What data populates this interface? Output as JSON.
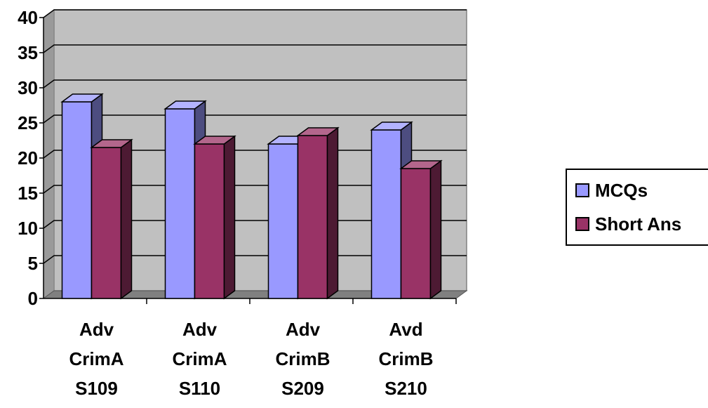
{
  "chart_data": {
    "type": "bar",
    "categories": [
      [
        "Adv",
        "CrimA",
        "S109"
      ],
      [
        "Adv",
        "CrimA",
        "S110"
      ],
      [
        "Adv",
        "CrimB",
        "S209"
      ],
      [
        "Avd",
        "CrimB",
        "S210"
      ]
    ],
    "series": [
      {
        "name": "MCQs",
        "values": [
          28,
          27,
          22,
          24
        ],
        "color": "#9999ff"
      },
      {
        "name": "Short Ans",
        "values": [
          21.5,
          22,
          23.2,
          18.5
        ],
        "color": "#993366"
      }
    ],
    "y_ticks": [
      "0",
      "5",
      "10",
      "15",
      "20",
      "25",
      "30",
      "35",
      "40"
    ],
    "ylim": [
      0,
      40
    ],
    "grid": true,
    "legend_position": "right",
    "plot_background": "#c0c0c0",
    "three_d": true
  },
  "legend": {
    "items": [
      {
        "label": "MCQs",
        "color": "#9999ff"
      },
      {
        "label": "Short Ans",
        "color": "#993366"
      }
    ]
  }
}
